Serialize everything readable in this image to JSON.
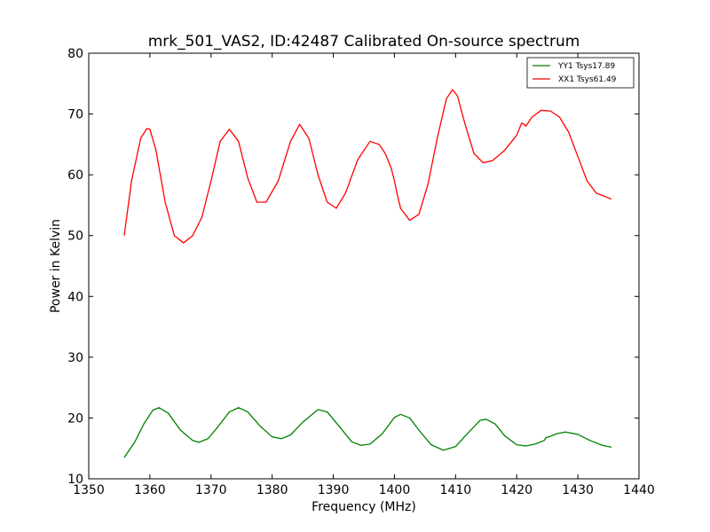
{
  "chart_data": {
    "type": "line",
    "title": "mrk_501_VAS2, ID:42487 Calibrated On-source spectrum",
    "xlabel": "Frequency (MHz)",
    "ylabel": "Power in Kelvin",
    "xlim": [
      1350,
      1440
    ],
    "ylim": [
      10,
      80
    ],
    "xticks": [
      "1350",
      "1360",
      "1370",
      "1380",
      "1390",
      "1400",
      "1410",
      "1420",
      "1430",
      "1440"
    ],
    "yticks": [
      "10",
      "20",
      "30",
      "40",
      "50",
      "60",
      "70",
      "80"
    ],
    "grid": false,
    "legend_position": "top-right",
    "series": [
      {
        "name": "YY1 Tsys17.89",
        "color": "#008000",
        "x": [
          1355.8,
          1357.5,
          1359.0,
          1360.5,
          1361.5,
          1363.0,
          1365.0,
          1367.0,
          1368.0,
          1369.5,
          1371.0,
          1373.0,
          1374.5,
          1376.0,
          1378.0,
          1380.0,
          1381.5,
          1383.0,
          1385.0,
          1387.5,
          1389.0,
          1391.0,
          1393.0,
          1394.5,
          1396.0,
          1398.0,
          1400.0,
          1401.0,
          1402.5,
          1404.0,
          1406.0,
          1408.0,
          1410.0,
          1412.0,
          1414.0,
          1415.0,
          1416.5,
          1418.0,
          1420.0,
          1421.5,
          1423.0,
          1424.5,
          1424.8,
          1425.3,
          1426.5,
          1428.0,
          1430.0,
          1432.0,
          1434.0,
          1435.5
        ],
        "y": [
          13.5,
          16.0,
          19.0,
          21.3,
          21.7,
          20.8,
          18.0,
          16.3,
          16.0,
          16.6,
          18.4,
          21.0,
          21.7,
          21.0,
          18.7,
          16.9,
          16.6,
          17.2,
          19.3,
          21.4,
          21.0,
          18.6,
          16.1,
          15.5,
          15.7,
          17.4,
          20.1,
          20.6,
          20.0,
          18.0,
          15.6,
          14.7,
          15.3,
          17.5,
          19.6,
          19.8,
          19.0,
          17.1,
          15.6,
          15.4,
          15.7,
          16.3,
          16.8,
          16.9,
          17.4,
          17.7,
          17.3,
          16.3,
          15.5,
          15.2
        ]
      },
      {
        "name": "XX1 Tsys61.49",
        "color": "#ff0000",
        "x": [
          1355.8,
          1357.0,
          1358.5,
          1359.5,
          1360.0,
          1361.0,
          1362.5,
          1364.0,
          1365.5,
          1367.0,
          1368.5,
          1370.0,
          1371.5,
          1373.0,
          1374.5,
          1376.0,
          1377.5,
          1379.0,
          1381.0,
          1383.0,
          1384.5,
          1386.0,
          1387.5,
          1389.0,
          1390.5,
          1392.0,
          1394.0,
          1396.0,
          1397.5,
          1398.5,
          1399.5,
          1400.0,
          1400.3,
          1401.0,
          1402.5,
          1404.0,
          1405.5,
          1407.0,
          1408.5,
          1409.5,
          1410.3,
          1411.5,
          1413.0,
          1414.5,
          1416.0,
          1418.0,
          1420.0,
          1420.8,
          1421.2,
          1421.5,
          1422.5,
          1424.0,
          1425.5,
          1427.0,
          1428.5,
          1430.0,
          1431.5,
          1433.0,
          1435.5
        ],
        "y": [
          50.0,
          59.0,
          66.0,
          67.6,
          67.5,
          64.0,
          55.5,
          50.0,
          48.8,
          50.0,
          53.0,
          59.0,
          65.5,
          67.5,
          65.5,
          59.5,
          55.5,
          55.5,
          59.0,
          65.5,
          68.3,
          66.0,
          60.0,
          55.5,
          54.5,
          57.0,
          62.5,
          65.5,
          65.0,
          63.5,
          61.0,
          59.0,
          57.5,
          54.5,
          52.5,
          53.5,
          58.5,
          66.0,
          72.5,
          74.0,
          73.0,
          68.5,
          63.5,
          62.0,
          62.3,
          64.0,
          66.5,
          68.5,
          68.3,
          68.0,
          69.5,
          70.6,
          70.5,
          69.5,
          67.0,
          63.0,
          59.0,
          57.0,
          56.0
        ]
      }
    ]
  }
}
